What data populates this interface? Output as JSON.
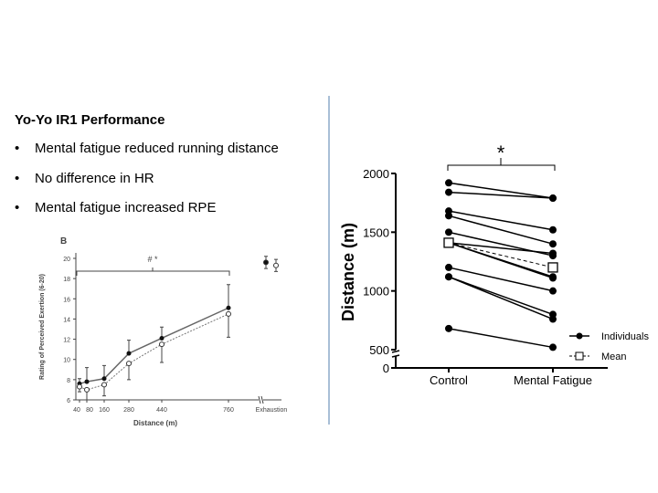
{
  "slide": {
    "title": "Yo-Yo IR1 Performance",
    "bullets": [
      "Mental fatigue reduced running distance",
      "No difference in HR",
      "Mental fatigue increased RPE"
    ],
    "bullet_symbol": "•"
  },
  "chart_data": [
    {
      "type": "line",
      "panel_label": "B",
      "xlabel": "Distance (m)",
      "ylabel": "Rating of Perceived Exertion (6-20)",
      "ylim": [
        6,
        20
      ],
      "yticks": [
        "6",
        "8",
        "10",
        "12",
        "14",
        "16",
        "18",
        "20"
      ],
      "x": [
        40,
        80,
        160,
        280,
        440,
        760
      ],
      "xtick_labels": [
        "40",
        "80",
        "160",
        "280",
        "440",
        "760"
      ],
      "extra_xtick": "Exhaustion",
      "significance": "# *",
      "series": [
        {
          "name": "filled",
          "values": [
            7.6,
            7.8,
            8.1,
            10.6,
            12.1,
            15.1
          ],
          "err_up": [
            0.5,
            1.4,
            1.3,
            1.3,
            1.1,
            2.3
          ],
          "exhaustion": 19.6,
          "exhaustion_err": 0.6
        },
        {
          "name": "open",
          "values": [
            7.3,
            7.0,
            7.5,
            9.6,
            11.5,
            14.5
          ],
          "err_down": [
            0.5,
            1.0,
            1.1,
            1.6,
            1.8,
            2.3
          ],
          "exhaustion": 19.3,
          "exhaustion_err": 0.6
        }
      ]
    },
    {
      "type": "line",
      "ylabel": "Distance (m)",
      "categories": [
        "Control",
        "Mental Fatigue"
      ],
      "ylim": [
        500,
        2000
      ],
      "yticks": [
        "0",
        "500",
        "1000",
        "1500",
        "2000"
      ],
      "significance": "*",
      "legend": [
        "Individuals",
        "Mean"
      ],
      "legend_position": "bottom-right",
      "individuals": [
        [
          1920,
          1790
        ],
        [
          1840,
          1790
        ],
        [
          1680,
          1520
        ],
        [
          1640,
          1400
        ],
        [
          1500,
          1300
        ],
        [
          1410,
          1320
        ],
        [
          1410,
          1110
        ],
        [
          1410,
          1120
        ],
        [
          1200,
          1000
        ],
        [
          1120,
          800
        ],
        [
          1120,
          760
        ],
        [
          680,
          520
        ]
      ],
      "mean": [
        1410,
        1200
      ]
    }
  ]
}
